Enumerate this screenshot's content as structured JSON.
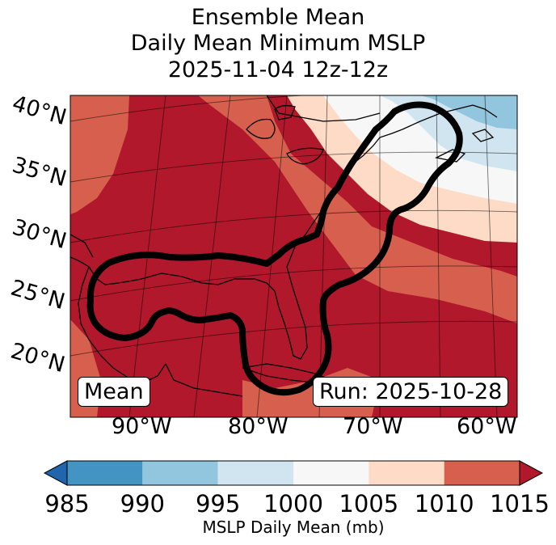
{
  "title": {
    "line1": "Ensemble Mean",
    "line2": "Daily Mean Minimum MSLP",
    "line3": "2025-11-04 12z-12z"
  },
  "lat_labels": [
    "40°N",
    "35°N",
    "30°N",
    "25°N",
    "20°N"
  ],
  "lon_labels": [
    "90°W",
    "80°W",
    "70°W",
    "60°W"
  ],
  "annotations": {
    "left": "Mean",
    "right": "Run: 2025-10-28"
  },
  "colorbar": {
    "label": "MSLP Daily Mean (mb)",
    "ticks": [
      "985",
      "990",
      "995",
      "1000",
      "1005",
      "1010",
      "1015"
    ],
    "colors": [
      "#2166ac",
      "#4393c3",
      "#92c5de",
      "#d1e5f0",
      "#f7f7f7",
      "#fddbc7",
      "#d6604d",
      "#b2182b"
    ],
    "extend": "both"
  }
}
